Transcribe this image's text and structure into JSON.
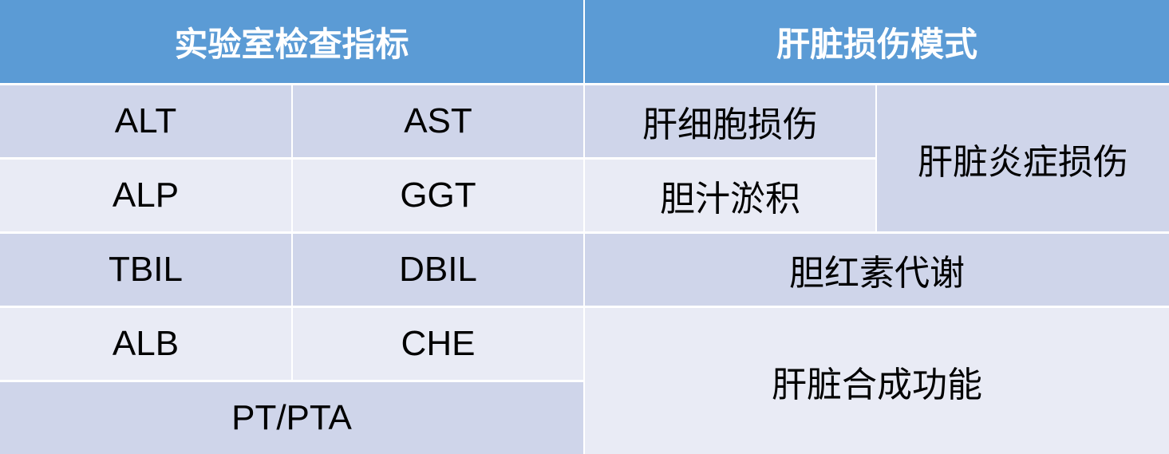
{
  "headers": {
    "lab_indicators": "实验室检查指标",
    "injury_pattern": "肝脏损伤模式"
  },
  "indicators": [
    "ALT",
    "AST",
    "ALP",
    "GGT",
    "TBIL",
    "DBIL",
    "ALB",
    "CHE",
    "PT/PTA"
  ],
  "patterns": {
    "hepatocellular": "肝细胞损伤",
    "cholestasis": "胆汁淤积",
    "inflammatory": "肝脏炎症损伤",
    "bilirubin": "胆红素代谢",
    "synthesis": "肝脏合成功能"
  },
  "colors": {
    "header": "#5B9BD5",
    "row_dark": "#CFD5EA",
    "row_light": "#E9EBF5"
  }
}
